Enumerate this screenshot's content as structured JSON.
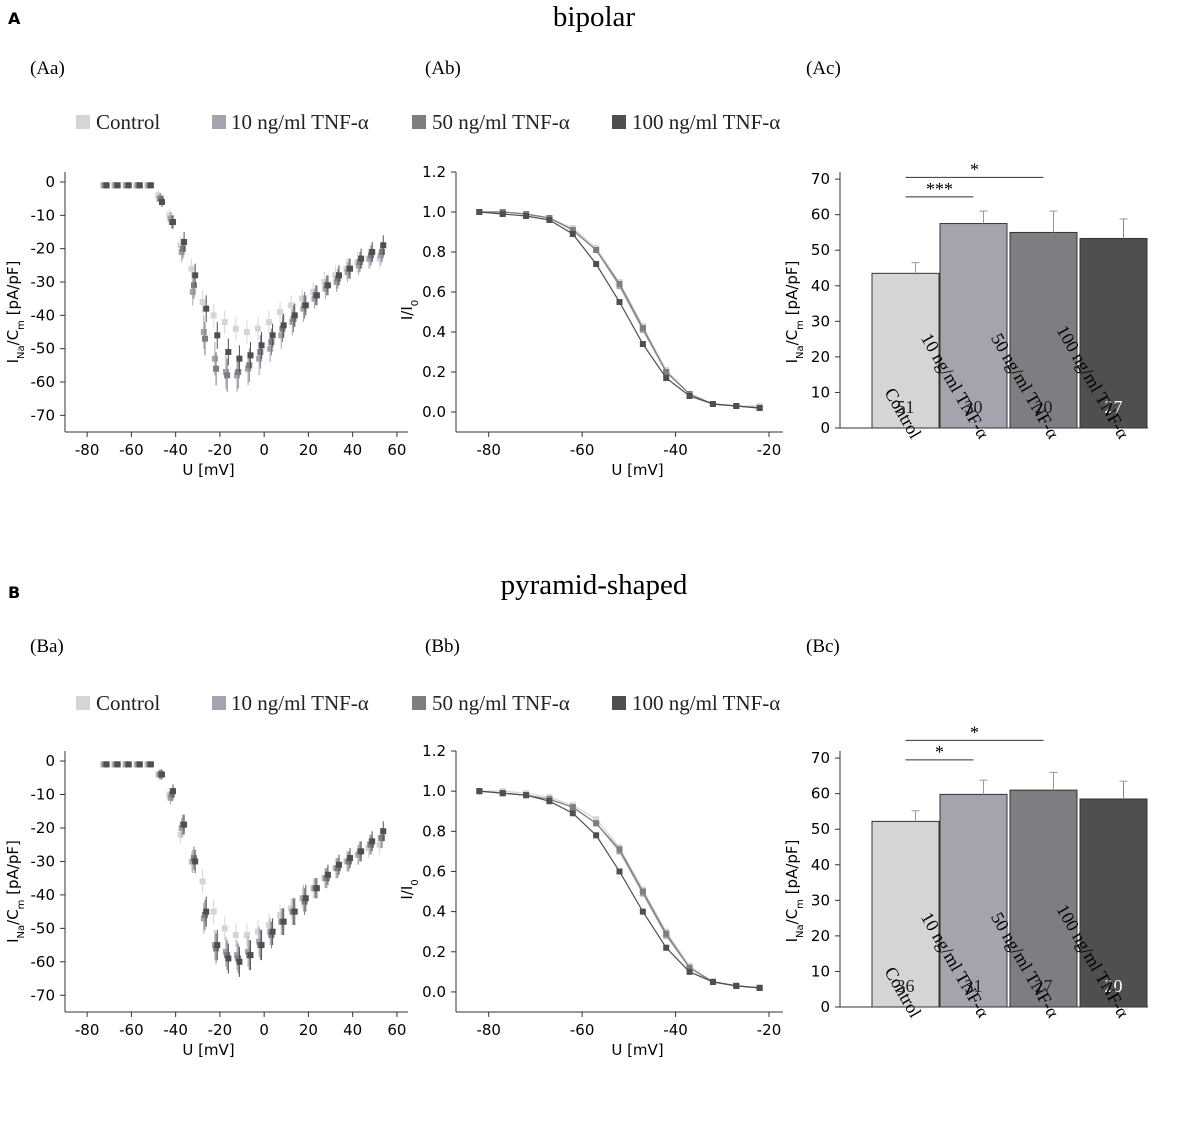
{
  "legend_colors": [
    "#d4d5d5",
    "#a4a3ae",
    "#7d7d82",
    "#4f4f52"
  ],
  "sections": [
    {
      "key": "A",
      "letter": "A",
      "title": "bipolar",
      "legend": [
        "Control",
        "10 ng/ml TNF-α",
        "50 ng/ml TNF-α",
        "100 ng/ml TNF-α"
      ],
      "iv": {
        "panel": "(Aa)",
        "ylabel": "I_Na/C_m [pA/pF]",
        "xlabel": "U [mV]",
        "xticks": [
          -80,
          -60,
          -40,
          -20,
          0,
          20,
          40,
          60
        ],
        "yticks": [
          0,
          -10,
          -20,
          -30,
          -40,
          -50,
          -60,
          -70
        ],
        "xlim": [
          -90,
          65
        ],
        "ylim": [
          -75,
          3
        ],
        "x": [
          -72,
          -67,
          -62,
          -57,
          -52,
          -47,
          -42,
          -37,
          -32,
          -27,
          -22,
          -17,
          -12,
          -7,
          -2,
          3,
          8,
          13,
          18,
          23,
          28,
          33,
          38,
          43,
          48,
          53
        ],
        "series": [
          {
            "name": "Control",
            "values": [
              -1,
              -1,
              -1,
              -1,
              -1,
              -4,
              -10,
              -19,
              -26,
              -36,
              -40,
              -42,
              -44,
              -45,
              -44,
              -42,
              -39,
              -37,
              -35,
              -33,
              -30,
              -28,
              -26,
              -24,
              -23,
              -23
            ],
            "err": [
              0.5,
              0.5,
              0.5,
              0.5,
              0.5,
              1.5,
              2,
              2.5,
              3,
              3.5,
              3.5,
              3.5,
              3.5,
              3.5,
              3.5,
              3.5,
              3,
              3,
              3,
              3,
              3,
              3,
              3,
              3,
              3,
              3
            ]
          },
          {
            "name": "10 ng/ml TNF-α",
            "values": [
              -1,
              -1,
              -1,
              -1,
              -1,
              -5,
              -11,
              -21,
              -33,
              -45,
              -53,
              -57,
              -58,
              -56,
              -53,
              -50,
              -46,
              -42,
              -38,
              -35,
              -32,
              -30,
              -27,
              -25,
              -23,
              -22
            ],
            "err": [
              0.5,
              0.5,
              0.5,
              0.5,
              0.5,
              1.5,
              2,
              3,
              4,
              5,
              5,
              5,
              5,
              5,
              5,
              4,
              4,
              4,
              4,
              3,
              3,
              3,
              3,
              3,
              3,
              3
            ]
          },
          {
            "name": "50 ng/ml TNF-α",
            "values": [
              -1,
              -1,
              -1,
              -1,
              -1,
              -5,
              -12,
              -20,
              -31,
              -47,
              -56,
              -58,
              -57,
              -55,
              -51,
              -48,
              -44,
              -41,
              -37,
              -34,
              -31,
              -29,
              -26,
              -24,
              -22,
              -21
            ],
            "err": [
              0.5,
              0.5,
              0.5,
              0.5,
              0.5,
              1.5,
              2,
              3,
              4,
              5,
              5,
              5,
              5,
              5,
              5,
              4,
              4,
              4,
              4,
              3,
              3,
              3,
              3,
              3,
              3,
              3
            ]
          },
          {
            "name": "100 ng/ml TNF-α",
            "values": [
              -1,
              -1,
              -1,
              -1,
              -1,
              -6,
              -12,
              -18,
              -28,
              -38,
              -46,
              -51,
              -53,
              -52,
              -49,
              -46,
              -43,
              -40,
              -37,
              -34,
              -31,
              -28,
              -26,
              -23,
              -21,
              -19
            ],
            "err": [
              0.5,
              0.5,
              0.5,
              0.5,
              0.5,
              1.5,
              2,
              3,
              3.5,
              4,
              4,
              4,
              4,
              4,
              4,
              3.5,
              3.5,
              3.5,
              3,
              3,
              3,
              3,
              3,
              3,
              3,
              3
            ]
          }
        ]
      },
      "act": {
        "panel": "(Ab)",
        "ylabel": "I/I_0",
        "xlabel": "U [mV]",
        "xticks": [
          -80,
          -60,
          -40,
          -20
        ],
        "yticks": [
          0.0,
          0.2,
          0.4,
          0.6,
          0.8,
          1.0,
          1.2
        ],
        "ytick_labels": [
          "0.0",
          "0.2",
          "0.4",
          "0.6",
          "0.8",
          "1.0",
          "1.2"
        ],
        "xlim": [
          -87,
          -17
        ],
        "ylim": [
          -0.1,
          1.2
        ],
        "x": [
          -82,
          -77,
          -72,
          -67,
          -62,
          -57,
          -52,
          -47,
          -42,
          -37,
          -32,
          -27,
          -22
        ],
        "series": [
          {
            "name": "Control",
            "values": [
              1.0,
              1.0,
              0.99,
              0.97,
              0.92,
              0.82,
              0.65,
              0.43,
              0.21,
              0.09,
              0.04,
              0.03,
              0.03
            ]
          },
          {
            "name": "10 ng/ml TNF-α",
            "values": [
              1.0,
              1.0,
              0.99,
              0.97,
              0.91,
              0.81,
              0.63,
              0.41,
              0.2,
              0.09,
              0.04,
              0.03,
              0.02
            ]
          },
          {
            "name": "50 ng/ml TNF-α",
            "values": [
              1.0,
              1.0,
              0.99,
              0.97,
              0.91,
              0.81,
              0.64,
              0.42,
              0.2,
              0.09,
              0.04,
              0.03,
              0.02
            ]
          },
          {
            "name": "100 ng/ml TNF-α",
            "values": [
              1.0,
              0.99,
              0.98,
              0.96,
              0.89,
              0.74,
              0.55,
              0.34,
              0.17,
              0.08,
              0.04,
              0.03,
              0.02
            ]
          }
        ]
      },
      "bar": {
        "panel": "(Ac)",
        "ylabel": "I_Na/C_m [pA/pF]",
        "yticks": [
          0,
          10,
          20,
          30,
          40,
          50,
          60,
          70
        ],
        "ylim": [
          0,
          72
        ],
        "categories": [
          "Control",
          "10 ng/ml TNF-α",
          "50 ng/ml TNF-α",
          "100 ng/ml TNF-α"
        ],
        "values": [
          43.5,
          57.5,
          55,
          53.3
        ],
        "err": [
          3,
          3.5,
          6,
          5.5
        ],
        "n": [
          "51",
          "30",
          "20",
          "27"
        ],
        "sig": [
          {
            "from": 0,
            "to": 1,
            "label": "***",
            "y": 65
          },
          {
            "from": 0,
            "to": 2,
            "label": "*",
            "y": 70.5
          }
        ]
      }
    },
    {
      "key": "B",
      "letter": "B",
      "title": "pyramid-shaped",
      "legend": [
        "Control",
        "10 ng/ml TNF-α",
        "50 ng/ml TNF-α",
        "100 ng/ml TNF-α"
      ],
      "iv": {
        "panel": "(Ba)",
        "ylabel": "I_Na/C_m [pA/pF]",
        "xlabel": "U [mV]",
        "xticks": [
          -80,
          -60,
          -40,
          -20,
          0,
          20,
          40,
          60
        ],
        "yticks": [
          0,
          -10,
          -20,
          -30,
          -40,
          -50,
          -60,
          -70
        ],
        "xlim": [
          -90,
          65
        ],
        "ylim": [
          -75,
          3
        ],
        "x": [
          -72,
          -67,
          -62,
          -57,
          -52,
          -47,
          -42,
          -37,
          -32,
          -27,
          -22,
          -17,
          -12,
          -7,
          -2,
          3,
          8,
          13,
          18,
          23,
          28,
          33,
          38,
          43,
          48,
          53
        ],
        "series": [
          {
            "name": "Control",
            "values": [
              -1,
              -1,
              -1,
              -1,
              -1,
              -4,
              -10,
              -22,
              -30,
              -36,
              -45,
              -50,
              -52,
              -52,
              -51,
              -49,
              -46,
              -44,
              -41,
              -38,
              -35,
              -32,
              -30,
              -28,
              -26,
              -25
            ],
            "err": [
              0.5,
              0.5,
              0.5,
              0.5,
              0.5,
              1.5,
              2,
              2.5,
              3,
              3.5,
              3.5,
              3.5,
              3.5,
              3.5,
              3.5,
              3.5,
              3,
              3,
              3,
              3,
              3,
              3,
              3,
              3,
              3,
              3
            ]
          },
          {
            "name": "10 ng/ml TNF-α",
            "values": [
              -1,
              -1,
              -1,
              -1,
              -1,
              -4,
              -11,
              -20,
              -30,
              -47,
              -55,
              -57,
              -58,
              -57,
              -54,
              -51,
              -48,
              -45,
              -41,
              -38,
              -35,
              -32,
              -30,
              -28,
              -25,
              -23
            ],
            "err": [
              0.5,
              0.5,
              0.5,
              0.5,
              0.5,
              1.5,
              2,
              3,
              3.5,
              4.5,
              4.5,
              4.5,
              4.5,
              4.5,
              4.5,
              4,
              4,
              4,
              4,
              3,
              3,
              3,
              3,
              3,
              3,
              3
            ]
          },
          {
            "name": "50 ng/ml TNF-α",
            "values": [
              -1,
              -1,
              -1,
              -1,
              -1,
              -4,
              -10,
              -19,
              -29,
              -46,
              -56,
              -58,
              -59,
              -58,
              -55,
              -52,
              -48,
              -45,
              -42,
              -38,
              -35,
              -32,
              -30,
              -27,
              -25,
              -23
            ],
            "err": [
              0.5,
              0.5,
              0.5,
              0.5,
              0.5,
              1.5,
              2,
              3,
              3.5,
              4.5,
              4.5,
              4.5,
              4.5,
              4.5,
              4.5,
              4,
              4,
              4,
              4,
              3,
              3,
              3,
              3,
              3,
              3,
              3
            ]
          },
          {
            "name": "100 ng/ml TNF-α",
            "values": [
              -1,
              -1,
              -1,
              -1,
              -1,
              -4,
              -9,
              -19,
              -30,
              -45,
              -55,
              -59,
              -60,
              -58,
              -55,
              -51,
              -48,
              -45,
              -41,
              -38,
              -34,
              -31,
              -29,
              -27,
              -24,
              -21
            ],
            "err": [
              0.5,
              0.5,
              0.5,
              0.5,
              0.5,
              1.5,
              2,
              3,
              3.5,
              4.5,
              4.5,
              4.5,
              4.5,
              4.5,
              4.5,
              4,
              4,
              4,
              4,
              3,
              3,
              3,
              3,
              3,
              3,
              3
            ]
          }
        ]
      },
      "act": {
        "panel": "(Bb)",
        "ylabel": "I/I_0",
        "xlabel": "U [mV]",
        "xticks": [
          -80,
          -60,
          -40,
          -20
        ],
        "yticks": [
          0.0,
          0.2,
          0.4,
          0.6,
          0.8,
          1.0,
          1.2
        ],
        "ytick_labels": [
          "0.0",
          "0.2",
          "0.4",
          "0.6",
          "0.8",
          "1.0",
          "1.2"
        ],
        "xlim": [
          -87,
          -17
        ],
        "ylim": [
          -0.1,
          1.2
        ],
        "x": [
          -82,
          -77,
          -72,
          -67,
          -62,
          -57,
          -52,
          -47,
          -42,
          -37,
          -32,
          -27,
          -22
        ],
        "series": [
          {
            "name": "Control",
            "values": [
              1.0,
              1.0,
              0.99,
              0.97,
              0.93,
              0.86,
              0.72,
              0.51,
              0.3,
              0.13,
              0.05,
              0.03,
              0.02
            ]
          },
          {
            "name": "10 ng/ml TNF-α",
            "values": [
              1.0,
              0.99,
              0.98,
              0.96,
              0.92,
              0.84,
              0.7,
              0.49,
              0.28,
              0.12,
              0.05,
              0.03,
              0.02
            ]
          },
          {
            "name": "50 ng/ml TNF-α",
            "values": [
              1.0,
              0.99,
              0.98,
              0.96,
              0.92,
              0.84,
              0.71,
              0.5,
              0.29,
              0.12,
              0.05,
              0.03,
              0.02
            ]
          },
          {
            "name": "100 ng/ml TNF-α",
            "values": [
              1.0,
              0.99,
              0.98,
              0.95,
              0.89,
              0.78,
              0.6,
              0.4,
              0.22,
              0.1,
              0.05,
              0.03,
              0.02
            ]
          }
        ]
      },
      "bar": {
        "panel": "(Bc)",
        "ylabel": "I_Na/C_m [pA/pF]",
        "yticks": [
          0,
          10,
          20,
          30,
          40,
          50,
          60,
          70
        ],
        "ylim": [
          0,
          72
        ],
        "categories": [
          "Control",
          "10 ng/ml TNF-α",
          "50 ng/ml TNF-α",
          "100 ng/ml TNF-α"
        ],
        "values": [
          52.2,
          59.8,
          61,
          58.5
        ],
        "err": [
          3,
          4,
          5,
          5
        ],
        "n": [
          "36",
          "31",
          "27",
          "20"
        ],
        "sig": [
          {
            "from": 0,
            "to": 1,
            "label": "*",
            "y": 69.5
          },
          {
            "from": 0,
            "to": 2,
            "label": "*",
            "y": 75
          }
        ]
      }
    }
  ]
}
